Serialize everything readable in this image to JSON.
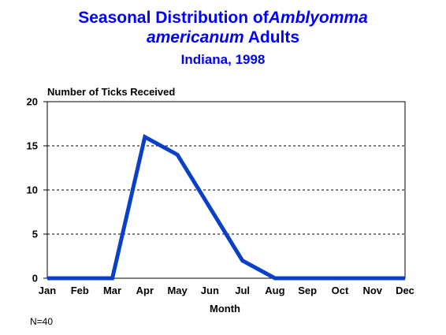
{
  "title": {
    "part1": "Seasonal Distribution of",
    "part2_italic": "Amblyomma americanum",
    "part3": " Adults",
    "subtitle": "Indiana, 1998"
  },
  "colors": {
    "line": "#0a3fc8",
    "title": "#0000ff"
  },
  "chart_data": {
    "type": "line",
    "categories": [
      "Jan",
      "Feb",
      "Mar",
      "Apr",
      "May",
      "Jun",
      "Jul",
      "Aug",
      "Sep",
      "Oct",
      "Nov",
      "Dec"
    ],
    "series": [
      {
        "values": [
          0,
          0,
          0,
          16,
          14,
          8,
          2,
          0,
          0,
          0,
          0,
          0
        ]
      }
    ],
    "ylabel": "Number of Ticks Received",
    "xlabel": "Month",
    "ylim": [
      0,
      20
    ],
    "yticks": [
      0,
      5,
      10,
      15,
      20
    ],
    "grid": "horizontal dashed"
  },
  "note": "N=40"
}
